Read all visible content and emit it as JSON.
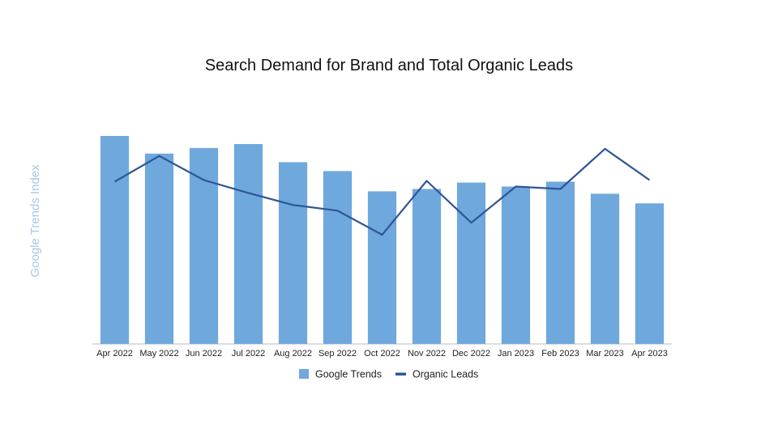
{
  "chart_data": {
    "type": "bar",
    "title": "Search Demand for Brand and Total Organic Leads",
    "ylabel": "Google Trends Index",
    "xlabel": "",
    "categories": [
      "Apr 2022",
      "May 2022",
      "Jun 2022",
      "Jul 2022",
      "Aug 2022",
      "Sep 2022",
      "Oct 2022",
      "Nov 2022",
      "Dec 2022",
      "Jan 2023",
      "Feb 2023",
      "Mar 2023",
      "Apr 2023"
    ],
    "series": [
      {
        "name": "Google Trends",
        "type": "bar",
        "color": "#6fa8dc",
        "values": [
          100,
          91.5,
          94.2,
          96.1,
          87.4,
          83.1,
          73.4,
          74.5,
          77.6,
          75.7,
          78.0,
          72.2,
          67.6
        ]
      },
      {
        "name": "Organic Leads",
        "type": "line",
        "color": "#2f5597",
        "values": [
          78.0,
          90.4,
          78.8,
          72.6,
          66.8,
          64.1,
          52.5,
          78.4,
          58.3,
          75.7,
          74.5,
          93.8,
          78.8
        ]
      }
    ],
    "ylim": [
      0,
      100
    ],
    "grid": false,
    "legend": "bottom"
  }
}
